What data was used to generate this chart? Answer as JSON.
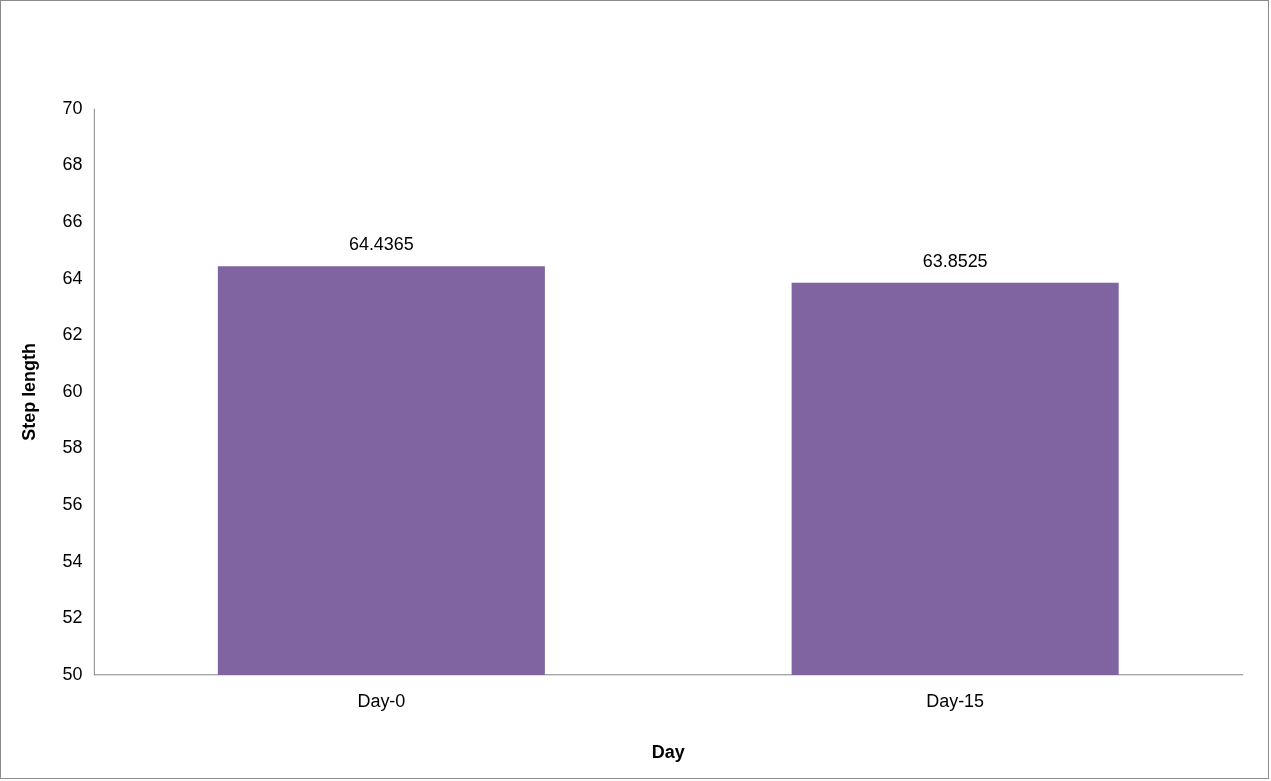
{
  "chart_data": {
    "type": "bar",
    "xlabel": "Day",
    "ylabel": "Step length",
    "categories": [
      "Day-0",
      "Day-15"
    ],
    "values": [
      64.4365,
      63.8525
    ],
    "color": "#8064a2",
    "ylim": [
      50,
      70
    ],
    "yticks": [
      50,
      52,
      54,
      56,
      58,
      60,
      62,
      64,
      66,
      68,
      70
    ],
    "grid": false,
    "legend": false,
    "data_labels": true
  }
}
